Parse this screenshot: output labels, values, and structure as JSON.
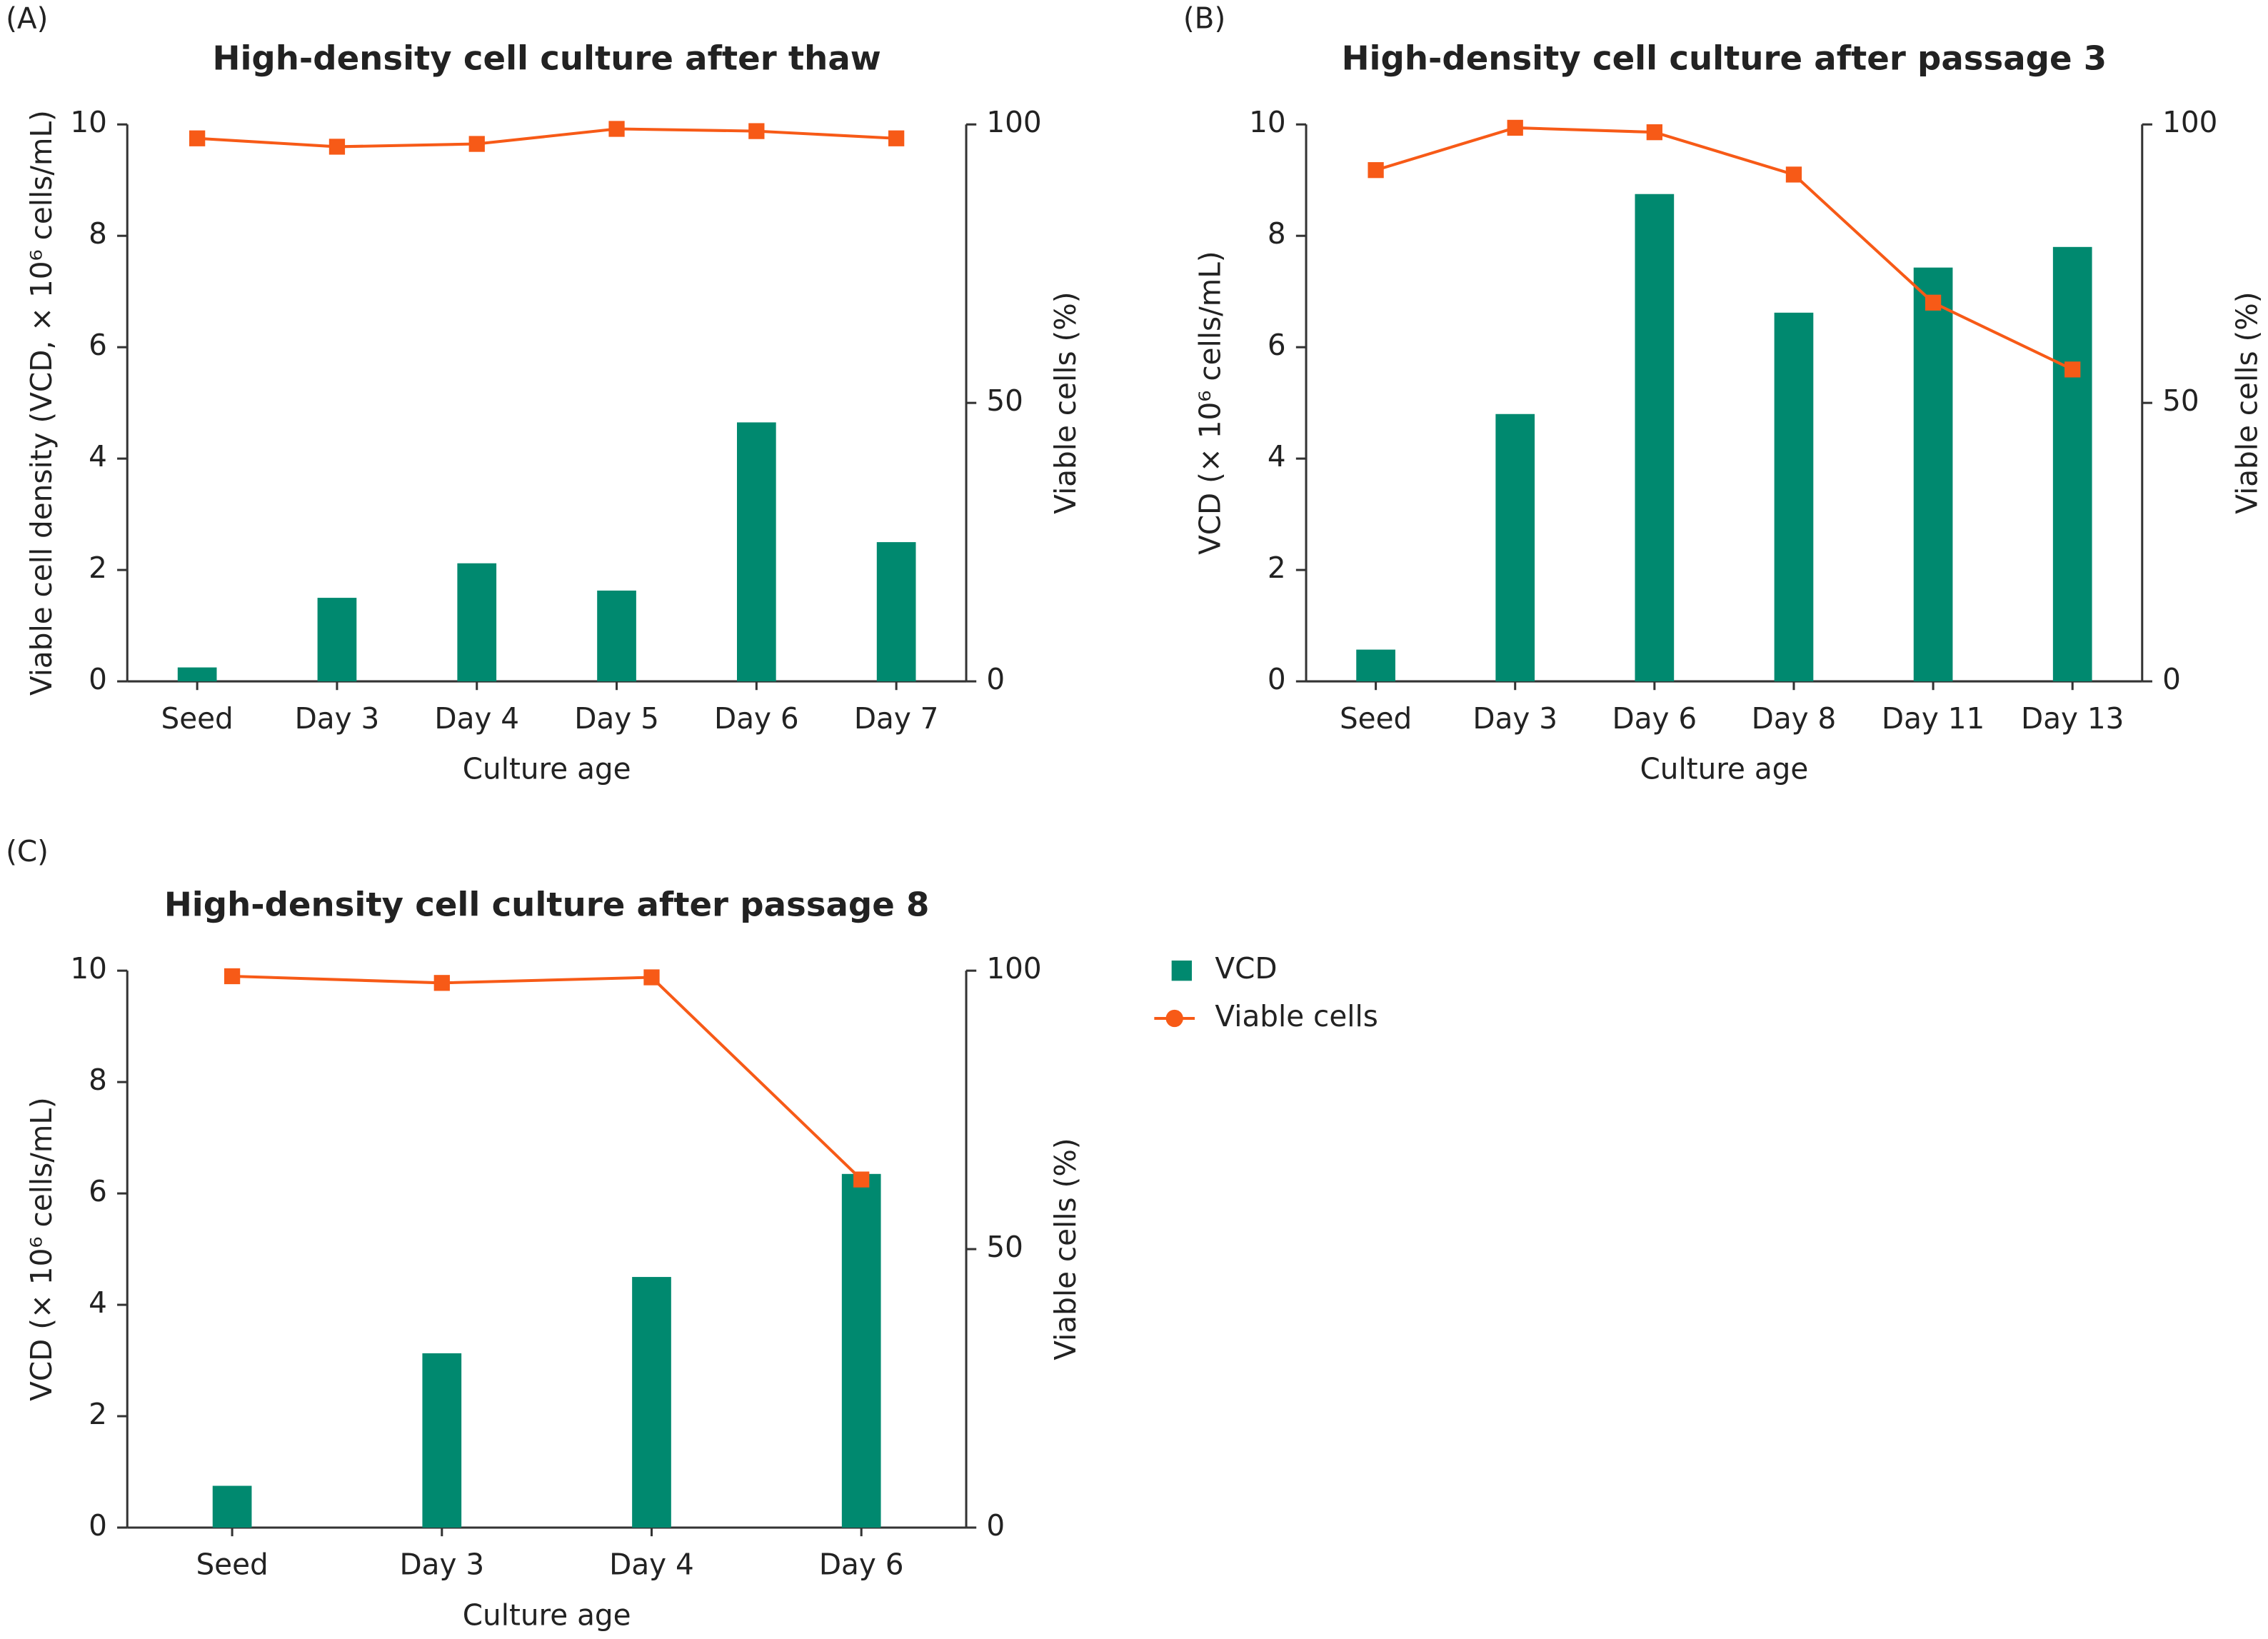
{
  "chart_data": [
    {
      "type": "bar",
      "panel": "(A)",
      "title": "High-density cell culture after thaw",
      "x_label": "Culture age",
      "y_label": "Viable cell density (VCD, × 10⁶ cells/mL)",
      "y2_label": "Viable cells (%)",
      "categories": [
        "Seed",
        "Day 3",
        "Day 4",
        "Day 5",
        "Day 6",
        "Day 7"
      ],
      "series": [
        {
          "type": "bar",
          "color": "#00896f",
          "values": [
            0.25,
            1.5,
            2.12,
            1.63,
            4.65,
            2.5
          ]
        },
        {
          "type": "line",
          "axis": "y2",
          "color": "#f75a17",
          "values": [
            97.5,
            96,
            96.5,
            99.2,
            98.8,
            97.5
          ]
        }
      ],
      "ylim": [
        0,
        10
      ],
      "yticks": [
        0,
        2,
        4,
        6,
        8,
        10
      ],
      "y2lim": [
        0,
        100
      ],
      "y2ticks": [
        0,
        50,
        100
      ]
    },
    {
      "type": "bar",
      "panel": "(B)",
      "title": "High-density cell culture after passage 3",
      "x_label": "Culture age",
      "y_label": "VCD (× 10⁶ cells/mL)",
      "y2_label": "Viable cells (%)",
      "categories": [
        "Seed",
        "Day 3",
        "Day 6",
        "Day 8",
        "Day 11",
        "Day 13"
      ],
      "series": [
        {
          "type": "bar",
          "color": "#00896f",
          "values": [
            0.57,
            4.8,
            8.75,
            6.62,
            7.43,
            7.8
          ]
        },
        {
          "type": "line",
          "axis": "y2",
          "color": "#f75a17",
          "values": [
            91.8,
            99.4,
            98.6,
            91,
            68,
            56
          ]
        }
      ],
      "ylim": [
        0,
        10
      ],
      "yticks": [
        0,
        2,
        4,
        6,
        8,
        10
      ],
      "y2lim": [
        0,
        100
      ],
      "y2ticks": [
        0,
        50,
        100
      ]
    },
    {
      "type": "bar",
      "panel": "(C)",
      "title": "High-density cell culture after passage 8",
      "x_label": "Culture age",
      "y_label": "VCD (× 10⁶ cells/mL)",
      "y2_label": "Viable cells (%)",
      "categories": [
        "Seed",
        "Day 3",
        "Day 4",
        "Day 6"
      ],
      "series": [
        {
          "type": "bar",
          "name": "VCD",
          "color": "#00896f",
          "values": [
            0.75,
            3.13,
            4.5,
            6.35
          ]
        },
        {
          "type": "line",
          "name": "Viable cells",
          "axis": "y2",
          "color": "#f75a17",
          "values": [
            99,
            97.8,
            98.8,
            62.5
          ]
        }
      ],
      "ylim": [
        0,
        10
      ],
      "yticks": [
        0,
        2,
        4,
        6,
        8,
        10
      ],
      "y2lim": [
        0,
        100
      ],
      "y2ticks": [
        0,
        50,
        100
      ],
      "legend": "right"
    }
  ]
}
